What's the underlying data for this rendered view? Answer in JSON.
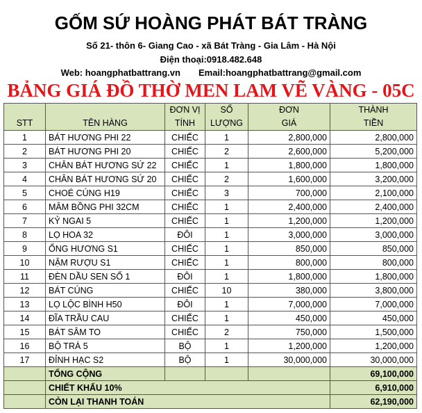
{
  "header": {
    "title": "GỐM SỨ HOÀNG PHÁT BÁT TRÀNG",
    "address": "Số 21- thôn 6- Giang Cao - xã Bát Tràng - Gia Lâm - Hà Nội",
    "phone": "Điện thoại:0918.482.648",
    "web": "Web: hoangphatbattrang.vn",
    "email": "Email:hoangphatbattrang@gmail.com",
    "price_title": "BẢNG GIÁ ĐỒ THỜ MEN LAM VẼ VÀNG - 05C"
  },
  "table": {
    "columns": [
      [
        "STT"
      ],
      [
        "TÊN HÀNG"
      ],
      [
        "ĐƠN VỊ",
        "TÍNH"
      ],
      [
        "SỐ",
        "LƯỢNG"
      ],
      [
        "ĐƠN",
        "GIÁ"
      ],
      [
        "THÀNH",
        "TIỀN"
      ]
    ],
    "rows": [
      [
        1,
        "BÁT HƯƠNG PHI 22",
        "CHIẾC",
        1,
        "2,800,000",
        "2,800,000"
      ],
      [
        2,
        "BÁT HƯƠNG PHI 20",
        "CHIẾC",
        2,
        "2,600,000",
        "5,200,000"
      ],
      [
        3,
        "CHÂN BÁT HƯƠNG SỨ 22",
        "CHIẾC",
        1,
        "1,800,000",
        "1,800,000"
      ],
      [
        4,
        "CHÂN BÁT HƯƠNG SỨ 20",
        "CHIẾC",
        2,
        "1,600,000",
        "3,200,000"
      ],
      [
        5,
        "CHOÉ CÚNG H19",
        "CHIẾC",
        3,
        "700,000",
        "2,100,000"
      ],
      [
        6,
        "MÂM BỒNG PHI 32CM",
        "CHIẾC",
        1,
        "2,400,000",
        "2,400,000"
      ],
      [
        7,
        "KỶ NGAI 5",
        "CHIẾC",
        1,
        "1,200,000",
        "1,200,000"
      ],
      [
        8,
        "LỌ HOA 32",
        "ĐÔI",
        1,
        "3,000,000",
        "3,000,000"
      ],
      [
        9,
        "ỐNG HƯƠNG S1",
        "CHIẾC",
        1,
        "850,000",
        "850,000"
      ],
      [
        10,
        "NẬM RƯỢU S1",
        "CHIẾC",
        1,
        "800,000",
        "800,000"
      ],
      [
        11,
        "ĐÈN DẦU SEN SỐ 1",
        "ĐÔI",
        1,
        "1,800,000",
        "1,800,000"
      ],
      [
        12,
        "BÁT CÚNG",
        "CHIẾC",
        10,
        "380,000",
        "3,800,000"
      ],
      [
        13,
        "LỌ LỘC BÌNH H50",
        "ĐÔI",
        1,
        "7,000,000",
        "7,000,000"
      ],
      [
        14,
        "ĐĨA TRẦU CAU",
        "CHIẾC",
        1,
        "450,000",
        "450,000"
      ],
      [
        15,
        "BÁT SÂM TO",
        "CHIẾC",
        2,
        "750,000",
        "1,500,000"
      ],
      [
        16,
        "BỘ TRÀ 5",
        "BỘ",
        1,
        "1,200,000",
        "1,200,000"
      ],
      [
        17,
        "ĐỈNH HẠC S2",
        "BỘ",
        1,
        "30,000,000",
        "30,000,000"
      ]
    ],
    "footer": [
      {
        "label": "TỔNG CỘNG",
        "value": "69,100,000"
      },
      {
        "label": "CHIẾT KHẤU 10%",
        "value": "6,910,000"
      },
      {
        "label": "CÒN LẠI THANH TOÁN",
        "value": "62,190,000"
      }
    ]
  }
}
